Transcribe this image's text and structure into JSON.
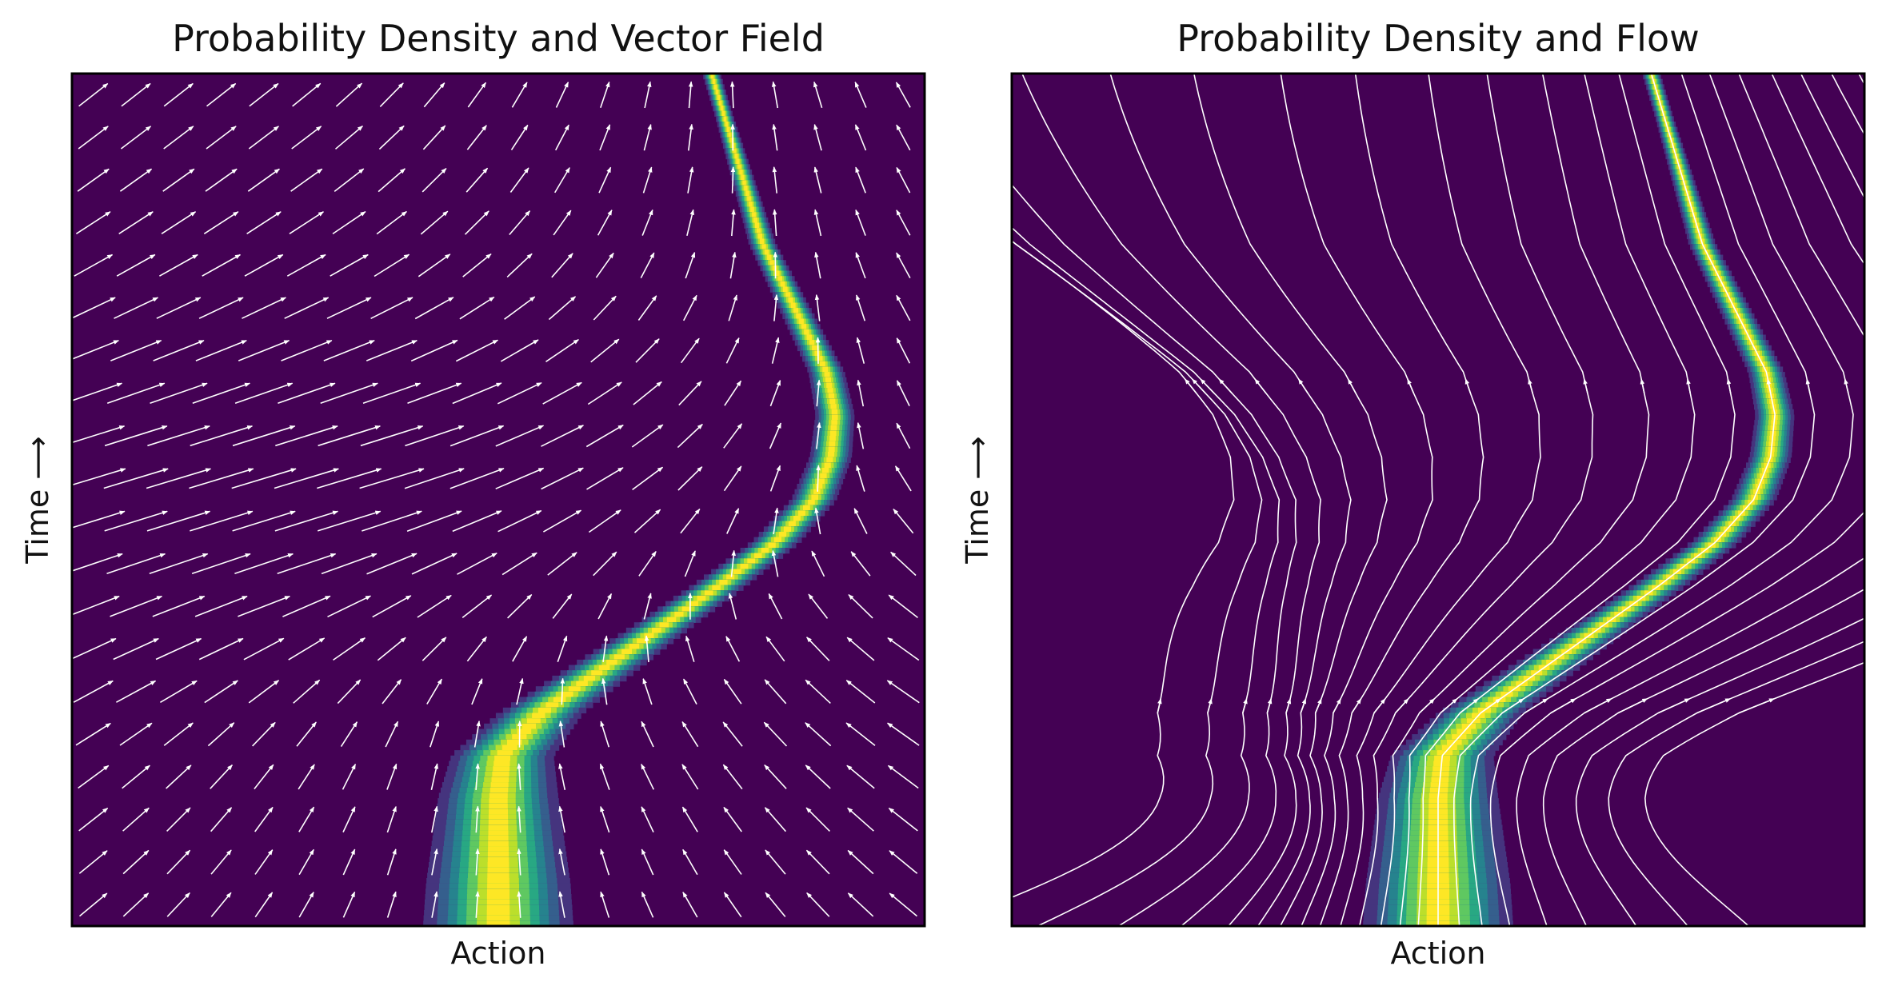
{
  "chart_data": [
    {
      "type": "heatmap",
      "subtype": "density-with-quiver",
      "title": "Probability Density and Vector Field",
      "xlabel": "Action",
      "ylabel": "Time ⟶",
      "ticks": "none",
      "colormap": "viridis",
      "background_color": "#440154",
      "peak_color": "#fde725",
      "arrow_color": "#ffffff",
      "grid": false,
      "density_path": {
        "t": [
          0,
          0.05,
          0.1,
          0.15,
          0.2,
          0.25,
          0.3,
          0.35,
          0.4,
          0.45,
          0.5,
          0.55,
          0.6,
          0.65,
          0.7,
          0.75,
          0.8,
          0.85,
          0.9,
          0.95,
          1.0
        ],
        "center": [
          0.5,
          0.5,
          0.5,
          0.5,
          0.505,
          0.55,
          0.62,
          0.69,
          0.76,
          0.825,
          0.87,
          0.89,
          0.895,
          0.885,
          0.86,
          0.835,
          0.81,
          0.795,
          0.78,
          0.765,
          0.75
        ],
        "width": [
          0.025,
          0.024,
          0.022,
          0.02,
          0.017,
          0.014,
          0.012,
          0.01,
          0.009,
          0.008,
          0.0075,
          0.007,
          0.0065,
          0.006,
          0.0055,
          0.005,
          0.0045,
          0.004,
          0.0035,
          0.003,
          0.003
        ]
      }
    },
    {
      "type": "heatmap",
      "subtype": "density-with-streamlines",
      "title": "Probability Density and Flow",
      "xlabel": "Action",
      "ylabel": "Time ⟶",
      "ticks": "none",
      "colormap": "viridis",
      "background_color": "#440154",
      "peak_color": "#fde725",
      "stream_color": "#ffffff",
      "grid": false,
      "density_path": {
        "t": [
          0,
          0.05,
          0.1,
          0.15,
          0.2,
          0.25,
          0.3,
          0.35,
          0.4,
          0.45,
          0.5,
          0.55,
          0.6,
          0.65,
          0.7,
          0.75,
          0.8,
          0.85,
          0.9,
          0.95,
          1.0
        ],
        "center": [
          0.5,
          0.5,
          0.5,
          0.5,
          0.505,
          0.55,
          0.62,
          0.69,
          0.76,
          0.825,
          0.87,
          0.89,
          0.895,
          0.885,
          0.86,
          0.835,
          0.81,
          0.795,
          0.78,
          0.765,
          0.75
        ],
        "width": [
          0.025,
          0.024,
          0.022,
          0.02,
          0.017,
          0.014,
          0.012,
          0.01,
          0.009,
          0.008,
          0.0075,
          0.007,
          0.0065,
          0.006,
          0.0055,
          0.005,
          0.0045,
          0.004,
          0.0035,
          0.003,
          0.003
        ]
      }
    }
  ]
}
